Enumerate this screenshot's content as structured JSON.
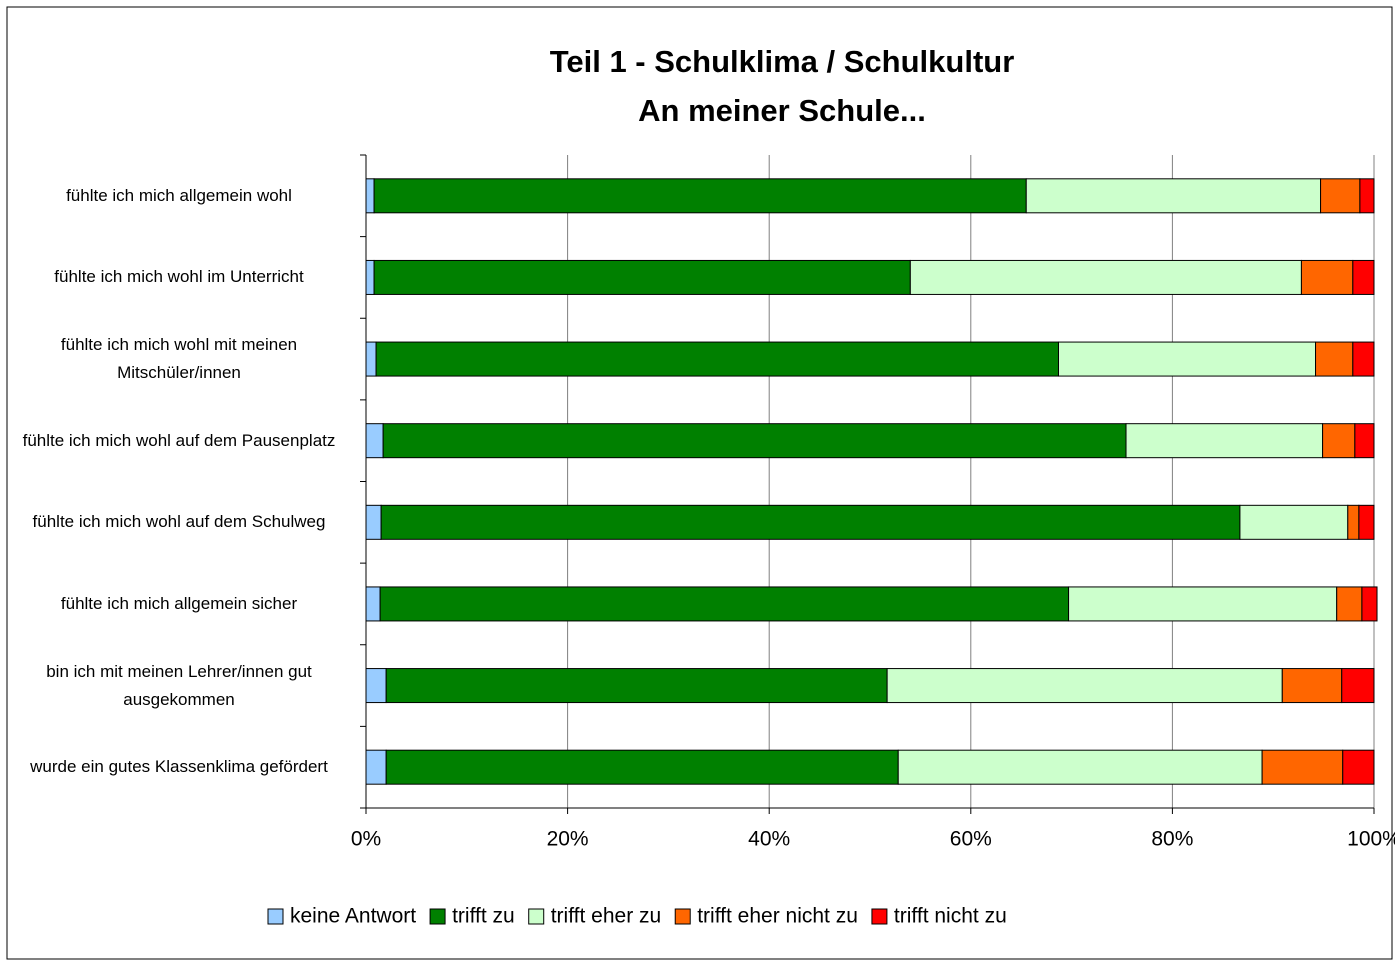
{
  "chart_data": {
    "type": "stacked-barh",
    "title": "Teil 1 - Schulklima / Schulkultur",
    "subtitle": "An meiner Schule...",
    "categories": [
      "fühlte ich mich allgemein wohl",
      "fühlte ich mich wohl im Unterricht",
      "fühlte ich mich wohl mit meinen Mitschüler/innen",
      "fühlte ich mich wohl auf dem Pausenplatz",
      "fühlte ich mich wohl auf dem Schulweg",
      "fühlte ich mich allgemein sicher",
      "bin ich mit meinen Lehrer/innen gut ausgekommen",
      "wurde ein gutes Klassenklima gefördert"
    ],
    "series": [
      {
        "name": "keine Antwort",
        "color": "#99ccff",
        "values": [
          0.8,
          0.8,
          1.0,
          1.7,
          1.5,
          1.4,
          2.0,
          2.0
        ]
      },
      {
        "name": "trifft zu",
        "color": "#008000",
        "values": [
          64.7,
          53.2,
          67.7,
          73.7,
          85.2,
          68.3,
          49.7,
          50.8
        ]
      },
      {
        "name": "trifft eher zu",
        "color": "#ccffcc",
        "values": [
          29.2,
          38.8,
          25.5,
          19.5,
          10.7,
          26.6,
          39.2,
          36.1
        ]
      },
      {
        "name": "trifft eher nicht zu",
        "color": "#ff6600",
        "values": [
          3.9,
          5.1,
          3.7,
          3.2,
          1.1,
          2.5,
          5.9,
          8.0
        ]
      },
      {
        "name": "trifft nicht zu",
        "color": "#ff0000",
        "values": [
          1.4,
          2.1,
          2.1,
          1.9,
          1.5,
          1.5,
          3.2,
          3.1
        ]
      }
    ],
    "xlim": [
      0,
      100
    ],
    "xticks": [
      {
        "value": 0,
        "label": "0%"
      },
      {
        "value": 20,
        "label": "20%"
      },
      {
        "value": 40,
        "label": "40%"
      },
      {
        "value": 60,
        "label": "60%"
      },
      {
        "value": 80,
        "label": "80%"
      },
      {
        "value": 100,
        "label": "100%"
      }
    ],
    "grid": true,
    "legend": "bottom"
  }
}
